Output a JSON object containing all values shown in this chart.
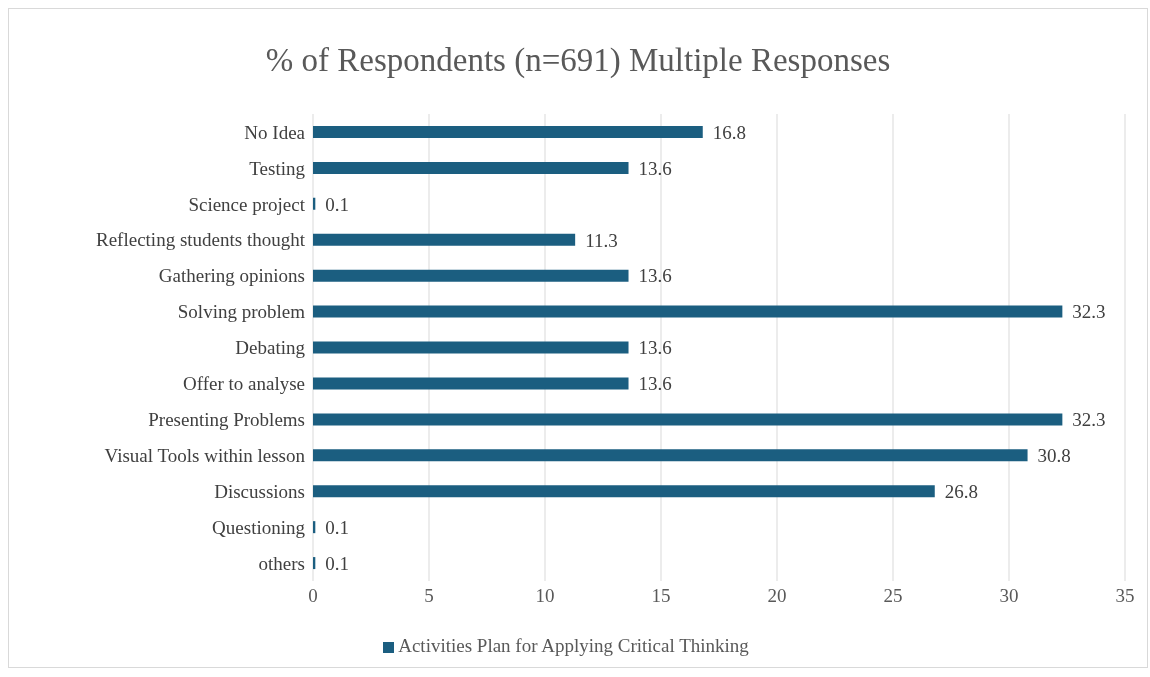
{
  "chart_data": {
    "type": "bar",
    "orientation": "horizontal",
    "title": "% of Respondents (n=691) Multiple Responses",
    "categories": [
      "No Idea",
      "Testing",
      "Science project",
      "Reflecting students thought",
      "Gathering opinions",
      "Solving problem",
      "Debating",
      "Offer to analyse",
      "Presenting Problems",
      "Visual Tools within lesson",
      "Discussions",
      "Questioning",
      "others"
    ],
    "series": [
      {
        "name": "Activities Plan for Applying Critical Thinking",
        "color": "#1b5e80",
        "values": [
          16.8,
          13.6,
          0.1,
          11.3,
          13.6,
          32.3,
          13.6,
          13.6,
          32.3,
          30.8,
          26.8,
          0.1,
          0.1
        ]
      }
    ],
    "xlim": [
      0,
      35
    ],
    "xticks": [
      0,
      5,
      10,
      15,
      20,
      25,
      30,
      35
    ],
    "grid": "x",
    "legend": "bottom",
    "data_labels": true
  }
}
